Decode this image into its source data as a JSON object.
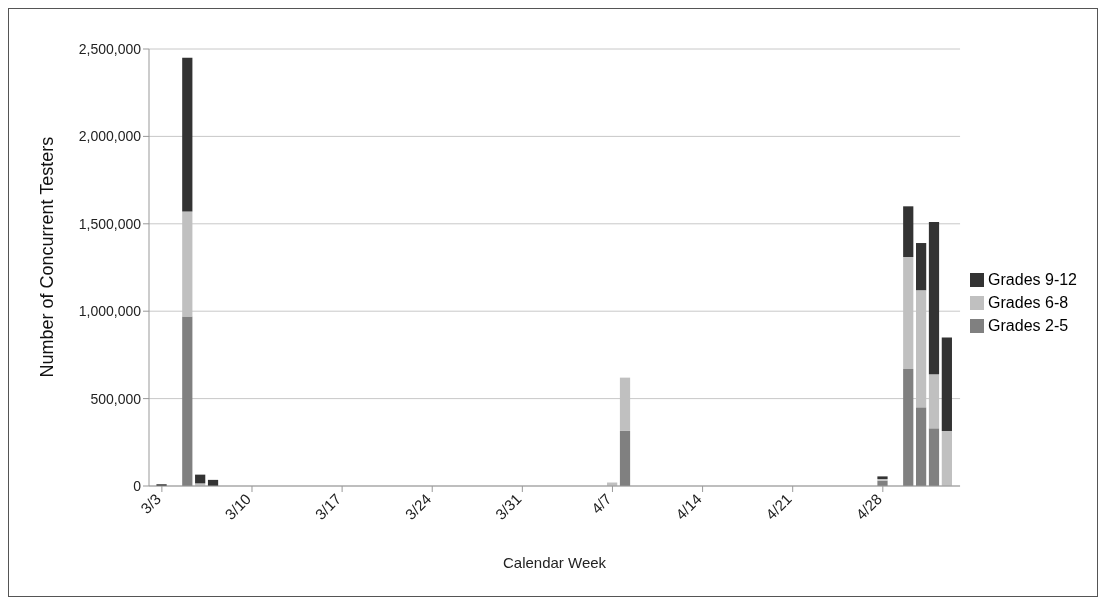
{
  "chart_data": {
    "type": "bar",
    "stacked": true,
    "xlabel": "Calendar Week",
    "ylabel": "Number of Concurrent Testers",
    "x": [
      "--03-03",
      "--03-05",
      "--03-06",
      "--03-07",
      "--04-07",
      "--04-08",
      "--04-28",
      "--04-30",
      "--05-01",
      "--05-02",
      "--05-03"
    ],
    "series": [
      {
        "name": "Grades 2-5",
        "color": "#808080",
        "values": [
          0,
          970000,
          null,
          0,
          0,
          315000,
          30000,
          670000,
          450000,
          330000,
          0
        ]
      },
      {
        "name": "Grades 6-8",
        "color": "#c0c0c0",
        "values": [
          0,
          600000,
          15000,
          0,
          20000,
          305000,
          10000,
          640000,
          670000,
          310000,
          315000
        ]
      },
      {
        "name": "Grades 9-12",
        "color": "#333333",
        "values": [
          10000,
          880000,
          50000,
          35000,
          0,
          0,
          15000,
          290000,
          270000,
          870000,
          535000
        ]
      }
    ],
    "xlim": [
      "--03-02",
      "--05-04"
    ],
    "xticks": [
      {
        "value": "--03-03",
        "label": "3/3"
      },
      {
        "value": "--03-10",
        "label": "3/10"
      },
      {
        "value": "--03-17",
        "label": "3/17"
      },
      {
        "value": "--03-24",
        "label": "3/24"
      },
      {
        "value": "--03-31",
        "label": "3/31"
      },
      {
        "value": "--04-07",
        "label": "4/7"
      },
      {
        "value": "--04-14",
        "label": "4/14"
      },
      {
        "value": "--04-21",
        "label": "4/21"
      },
      {
        "value": "--04-28",
        "label": "4/28"
      }
    ],
    "ylim": [
      0,
      2500000
    ],
    "yticks": [
      0,
      {
        "value": 500000,
        "label": "500,000"
      },
      {
        "value": 1000000,
        "label": "1,000,000"
      },
      {
        "value": 1500000,
        "label": "1,500,000"
      },
      {
        "value": 2000000,
        "label": "2,000,000"
      },
      {
        "value": 2500000,
        "label": "2,500,000"
      }
    ],
    "grid": "y",
    "legend": "right"
  }
}
